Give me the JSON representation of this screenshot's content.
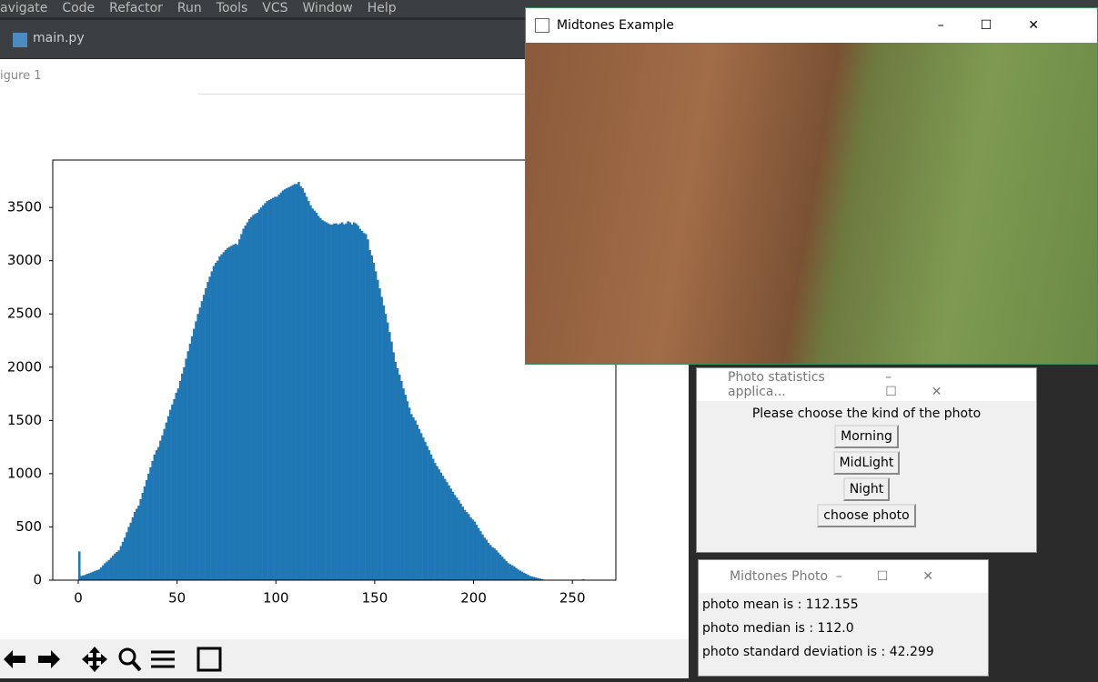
{
  "ide": {
    "menu": [
      "avigate",
      "Code",
      "Refactor",
      "Run",
      "Tools",
      "VCS",
      "Window",
      "Help"
    ],
    "tab": "main.py",
    "figure_title": "igure 1"
  },
  "chart_data": {
    "type": "histogram",
    "color": "#1f77b4",
    "bins": [
      0,
      1,
      2,
      3,
      4,
      5,
      6,
      7,
      8,
      9,
      10,
      11,
      12,
      13,
      14,
      15,
      16,
      17,
      18,
      19,
      20,
      21,
      22,
      23,
      24,
      25,
      26,
      27,
      28,
      29,
      30,
      31,
      32,
      33,
      34,
      35,
      36,
      37,
      38,
      39,
      40,
      41,
      42,
      43,
      44,
      45,
      46,
      47,
      48,
      49,
      50,
      51,
      52,
      53,
      54,
      55,
      56,
      57,
      58,
      59,
      60,
      61,
      62,
      63,
      64,
      65,
      66,
      67,
      68,
      69,
      70,
      71,
      72,
      73,
      74,
      75,
      76,
      77,
      78,
      79,
      80,
      81,
      82,
      83,
      84,
      85,
      86,
      87,
      88,
      89,
      90,
      91,
      92,
      93,
      94,
      95,
      96,
      97,
      98,
      99,
      100,
      101,
      102,
      103,
      104,
      105,
      106,
      107,
      108,
      109,
      110,
      111,
      112,
      113,
      114,
      115,
      116,
      117,
      118,
      119,
      120,
      121,
      122,
      123,
      124,
      125,
      126,
      127,
      128,
      129,
      130,
      131,
      132,
      133,
      134,
      135,
      136,
      137,
      138,
      139,
      140,
      141,
      142,
      143,
      144,
      145,
      146,
      147,
      148,
      149,
      150,
      151,
      152,
      153,
      154,
      155,
      156,
      157,
      158,
      159,
      160,
      161,
      162,
      163,
      164,
      165,
      166,
      167,
      168,
      169,
      170,
      171,
      172,
      173,
      174,
      175,
      176,
      177,
      178,
      179,
      180,
      181,
      182,
      183,
      184,
      185,
      186,
      187,
      188,
      189,
      190,
      191,
      192,
      193,
      194,
      195,
      196,
      197,
      198,
      199,
      200,
      201,
      202,
      203,
      204,
      205,
      206,
      207,
      208,
      209,
      210,
      211,
      212,
      213,
      214,
      215,
      216,
      217,
      218,
      219,
      220,
      221,
      222,
      223,
      224,
      225,
      226,
      227,
      228,
      229,
      230,
      231,
      232,
      233,
      234,
      235,
      236,
      237,
      238,
      239,
      240,
      241,
      242,
      243,
      244,
      245,
      246,
      247,
      248,
      249,
      250,
      251,
      252,
      253,
      254,
      255,
      256
    ],
    "values": [
      270,
      40,
      45,
      50,
      60,
      65,
      72,
      80,
      88,
      95,
      100,
      120,
      140,
      160,
      175,
      190,
      210,
      230,
      250,
      265,
      280,
      320,
      360,
      400,
      450,
      500,
      540,
      590,
      640,
      670,
      700,
      760,
      820,
      880,
      940,
      1000,
      1060,
      1120,
      1180,
      1220,
      1250,
      1310,
      1360,
      1420,
      1480,
      1540,
      1600,
      1650,
      1700,
      1760,
      1800,
      1870,
      1940,
      2000,
      2080,
      2150,
      2220,
      2290,
      2360,
      2430,
      2500,
      2560,
      2620,
      2680,
      2740,
      2800,
      2850,
      2900,
      2950,
      2980,
      3000,
      3040,
      3060,
      3080,
      3100,
      3120,
      3130,
      3140,
      3150,
      3160,
      3150,
      3200,
      3250,
      3300,
      3330,
      3360,
      3390,
      3410,
      3430,
      3440,
      3450,
      3480,
      3500,
      3520,
      3540,
      3560,
      3570,
      3580,
      3590,
      3600,
      3600,
      3620,
      3640,
      3660,
      3670,
      3680,
      3690,
      3700,
      3710,
      3720,
      3720,
      3740,
      3700,
      3680,
      3640,
      3600,
      3560,
      3520,
      3490,
      3470,
      3450,
      3420,
      3400,
      3380,
      3370,
      3360,
      3350,
      3340,
      3340,
      3350,
      3350,
      3340,
      3350,
      3360,
      3340,
      3350,
      3370,
      3360,
      3340,
      3360,
      3350,
      3330,
      3300,
      3280,
      3260,
      3250,
      3200,
      3100,
      3050,
      2980,
      2900,
      2820,
      2740,
      2660,
      2580,
      2500,
      2420,
      2330,
      2240,
      2140,
      2050,
      1990,
      1930,
      1870,
      1800,
      1740,
      1680,
      1620,
      1560,
      1530,
      1500,
      1460,
      1420,
      1380,
      1340,
      1300,
      1260,
      1220,
      1180,
      1140,
      1100,
      1070,
      1040,
      1010,
      980,
      950,
      920,
      890,
      860,
      830,
      800,
      775,
      750,
      720,
      690,
      660,
      640,
      620,
      590,
      570,
      550,
      520,
      490,
      460,
      430,
      400,
      380,
      350,
      330,
      310,
      300,
      280,
      260,
      240,
      220,
      200,
      180,
      160,
      150,
      140,
      130,
      115,
      100,
      90,
      80,
      70,
      60,
      50,
      40,
      35,
      30,
      25,
      20,
      15,
      10,
      5,
      3,
      2,
      1,
      0,
      0,
      0,
      0,
      0,
      0,
      0,
      0,
      0,
      0,
      0,
      0,
      0,
      0,
      0,
      0,
      8
    ],
    "xlim": [
      -12.9,
      272
    ],
    "ylim": [
      0,
      3945
    ],
    "xticks": [
      0,
      50,
      100,
      150,
      200,
      250
    ],
    "yticks": [
      0,
      500,
      1000,
      1500,
      2000,
      2500,
      3000,
      3500
    ]
  },
  "midtones_window": {
    "title": "Midtones Example"
  },
  "stats_window": {
    "title": "Photo statistics applica...",
    "prompt": "Please choose the kind of the photo",
    "buttons": [
      "Morning",
      "MidLight",
      "Night",
      "choose photo"
    ]
  },
  "photo_window": {
    "title": "Midtones Photo",
    "lines": [
      "photo mean is : 112.155",
      "photo median is : 112.0",
      "photo standard deviation is : 42.299"
    ]
  }
}
